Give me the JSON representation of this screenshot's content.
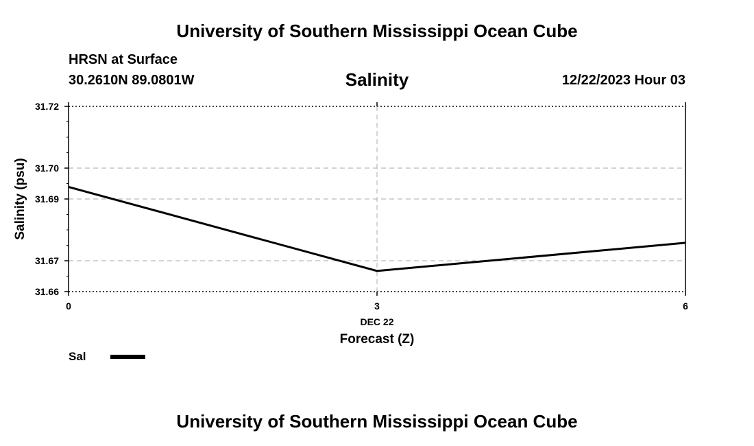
{
  "header": {
    "title": "University of Southern Mississippi Ocean Cube",
    "station": "HRSN at Surface",
    "coordinates": "30.2610N  89.0801W",
    "parameter": "Salinity",
    "datetime": "12/22/2023 Hour 03"
  },
  "footer": {
    "title": "University of Southern Mississippi Ocean Cube"
  },
  "legend": {
    "label": "Sal"
  },
  "chart_data": {
    "type": "line",
    "title": "Salinity",
    "xlabel": "Forecast (Z)",
    "ylabel": "Salinity (psu)",
    "x": [
      0,
      3,
      6
    ],
    "x_tick_labels": [
      "0",
      "3",
      "6"
    ],
    "x_sub_label": "DEC 22",
    "y_ticks": [
      31.66,
      31.67,
      31.69,
      31.7,
      31.72
    ],
    "y_tick_labels": [
      "31.66",
      "31.67",
      "31.69",
      "31.70",
      "31.72"
    ],
    "ylim": [
      31.66,
      31.72
    ],
    "xlim": [
      0,
      6
    ],
    "grid": true,
    "series": [
      {
        "name": "Sal",
        "values": [
          31.6939,
          31.6667,
          31.6758
        ],
        "color": "#000000"
      }
    ]
  }
}
